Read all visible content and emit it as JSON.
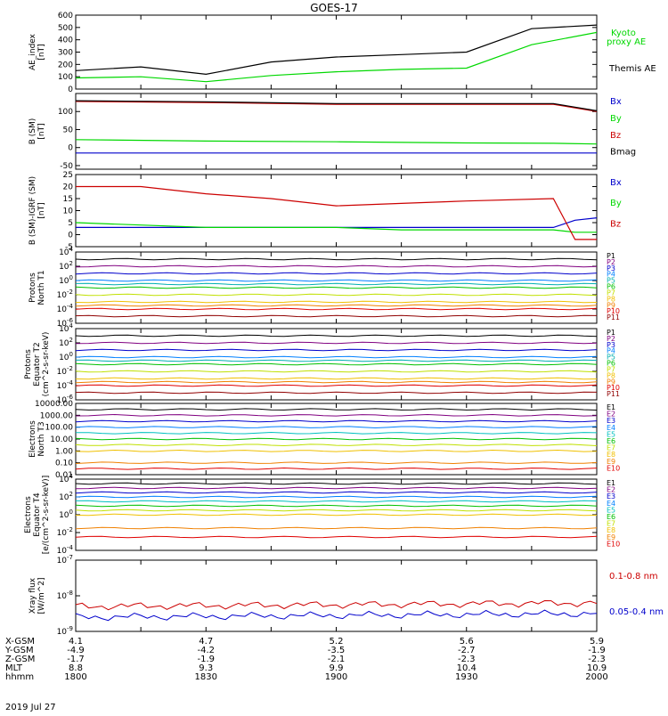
{
  "title": "GOES-17",
  "date_label": "2019 Jul 27",
  "footer_rows": [
    {
      "label": "X-GSM",
      "values": [
        "4.1",
        "4.7",
        "5.2",
        "5.6",
        "5.9"
      ]
    },
    {
      "label": "Y-GSM",
      "values": [
        "-4.9",
        "-4.2",
        "-3.5",
        "-2.7",
        "-1.9"
      ]
    },
    {
      "label": "Z-GSM",
      "values": [
        "-1.7",
        "-1.9",
        "-2.1",
        "-2.3",
        "-2.3"
      ]
    },
    {
      "label": "MLT",
      "values": [
        "8.8",
        "9.3",
        "9.9",
        "10.4",
        "10.9"
      ]
    },
    {
      "label": "hhmm",
      "values": [
        "1800",
        "1830",
        "1900",
        "1930",
        "2000"
      ]
    }
  ],
  "colors": {
    "black": "#000000",
    "green": "#00d800",
    "red": "#cc0000",
    "blue": "#0000cc",
    "P": [
      "#000000",
      "#800080",
      "#0000cc",
      "#0080ff",
      "#00b0b0",
      "#00c000",
      "#c0e000",
      "#f0c000",
      "#f08000",
      "#e00000",
      "#900000"
    ],
    "E": [
      "#000000",
      "#800080",
      "#0000cc",
      "#0080ff",
      "#00c0c0",
      "#00c000",
      "#c0e000",
      "#f0c000",
      "#f08000",
      "#e00000",
      "#900000"
    ]
  },
  "chart_data": [
    {
      "type": "line",
      "panel": "ae",
      "ylabel": [
        "AE_index",
        "[nT]"
      ],
      "ylim": [
        0,
        600
      ],
      "yticks": [
        "0",
        "100",
        "200",
        "300",
        "400",
        "500",
        "600"
      ],
      "x": [
        1800,
        1815,
        1830,
        1845,
        1900,
        1915,
        1930,
        1945,
        2000
      ],
      "series": [
        {
          "name": "Themis AE",
          "color": "#000000",
          "values": [
            150,
            180,
            120,
            220,
            260,
            280,
            300,
            490,
            520
          ]
        },
        {
          "name": "Kyoto proxy AE",
          "color": "#00d800",
          "values": [
            90,
            100,
            60,
            110,
            140,
            160,
            170,
            360,
            460
          ]
        }
      ],
      "legend": [
        "Kyoto",
        "proxy AE",
        "Themis AE"
      ]
    },
    {
      "type": "line",
      "panel": "bsm",
      "ylabel": [
        "B (SM)",
        "[nT]"
      ],
      "ylim": [
        -60,
        150
      ],
      "yticks": [
        "-50",
        "0",
        "50",
        "100"
      ],
      "x": [
        1800,
        1830,
        1900,
        1930,
        1950,
        2000
      ],
      "series": [
        {
          "name": "Bx",
          "color": "#0000cc",
          "values": [
            -15,
            -15,
            -15,
            -15,
            -15,
            -15
          ]
        },
        {
          "name": "By",
          "color": "#00d800",
          "values": [
            22,
            18,
            16,
            13,
            12,
            10
          ]
        },
        {
          "name": "Bz",
          "color": "#cc0000",
          "values": [
            128,
            125,
            120,
            120,
            120,
            100
          ]
        },
        {
          "name": "Bmag",
          "color": "#000000",
          "values": [
            130,
            127,
            122,
            122,
            122,
            102
          ]
        }
      ]
    },
    {
      "type": "line",
      "panel": "bres",
      "ylabel": [
        "B (SM)-IGRF (SM)",
        "[nT]"
      ],
      "ylim": [
        -5,
        25
      ],
      "yticks": [
        "-5",
        "0",
        "5",
        "10",
        "15",
        "20",
        "25"
      ],
      "x": [
        1800,
        1815,
        1830,
        1845,
        1900,
        1915,
        1930,
        1950,
        1955,
        2000
      ],
      "series": [
        {
          "name": "Bx",
          "color": "#0000cc",
          "values": [
            3,
            3,
            3,
            3,
            3,
            3,
            3,
            3,
            6,
            7
          ]
        },
        {
          "name": "By",
          "color": "#00d800",
          "values": [
            5,
            4,
            3,
            3,
            3,
            2,
            2,
            2,
            1,
            1
          ]
        },
        {
          "name": "Bz",
          "color": "#cc0000",
          "values": [
            20,
            20,
            17,
            15,
            12,
            13,
            14,
            15,
            -2,
            -2
          ]
        }
      ]
    },
    {
      "type": "line",
      "panel": "pn",
      "ylabel": [
        "Protons",
        "North T1"
      ],
      "log": true,
      "ylim": [
        -6,
        4
      ],
      "yticks": [
        "10^-6",
        "10^-4",
        "10^-2",
        "10^0",
        "10^2",
        "10^4"
      ],
      "series_labels": [
        "P1",
        "P2",
        "P3",
        "P4",
        "P5",
        "P6",
        "P7",
        "P8",
        "P9",
        "P10",
        "P11"
      ],
      "levels": [
        3,
        2,
        1,
        0,
        -0.5,
        -1,
        -2,
        -3,
        -3.5,
        -4,
        -5
      ]
    },
    {
      "type": "line",
      "panel": "pe",
      "ylabel": [
        "Protons",
        "Equator T2",
        "(cm^2-s-sr-keV)"
      ],
      "log": true,
      "ylim": [
        -6,
        4
      ],
      "yticks": [
        "10^-6",
        "10^-4",
        "10^-2",
        "10^0",
        "10^2",
        "10^4"
      ],
      "series_labels": [
        "P1",
        "P2",
        "P3",
        "P4",
        "P5",
        "P6",
        "P7",
        "P8",
        "P9",
        "P10",
        "P11"
      ],
      "levels": [
        3,
        2,
        1,
        0,
        -0.5,
        -1,
        -2,
        -3,
        -3.5,
        -4,
        -5
      ]
    },
    {
      "type": "line",
      "panel": "en",
      "ylabel": [
        "Electrons",
        "North T3"
      ],
      "log": true,
      "ylim": [
        -2,
        4
      ],
      "yticks": [
        "0.01",
        "0.10",
        "1.00",
        "10.00",
        "100.00",
        "1000.00",
        "10000.00"
      ],
      "series_labels": [
        "E1",
        "E2",
        "E3",
        "E4",
        "E5",
        "E6",
        "E7",
        "E8",
        "E9",
        "E10"
      ],
      "levels": [
        3.5,
        3,
        2.5,
        2,
        1.5,
        1,
        0.5,
        0,
        -1,
        -1.5
      ]
    },
    {
      "type": "line",
      "panel": "ee",
      "ylabel": [
        "Electrons",
        "Equator T4",
        "[e/(cm^2-s-sr-keV)]"
      ],
      "log": true,
      "ylim": [
        -4,
        4
      ],
      "yticks": [
        "10^-4",
        "10^-2",
        "10^0",
        "10^2",
        "10^4"
      ],
      "series_labels": [
        "E1",
        "E2",
        "E3",
        "E4",
        "E5",
        "E6",
        "E7",
        "E8",
        "E9",
        "E10"
      ],
      "levels": [
        3.5,
        3,
        2.5,
        2,
        1.5,
        1,
        0.5,
        0,
        -1.5,
        -2.5
      ]
    },
    {
      "type": "line",
      "panel": "xray",
      "ylabel": [
        "Xray flux",
        "[W/m^2]"
      ],
      "log": true,
      "ylim": [
        -9,
        -7
      ],
      "yticks": [
        "10^-9",
        "10^-8",
        "10^-7"
      ],
      "series": [
        {
          "name": "0.1-0.8 nm",
          "color": "#cc0000",
          "level": -8.3
        },
        {
          "name": "0.05-0.4 nm",
          "color": "#0000cc",
          "level": -8.6
        }
      ]
    }
  ]
}
